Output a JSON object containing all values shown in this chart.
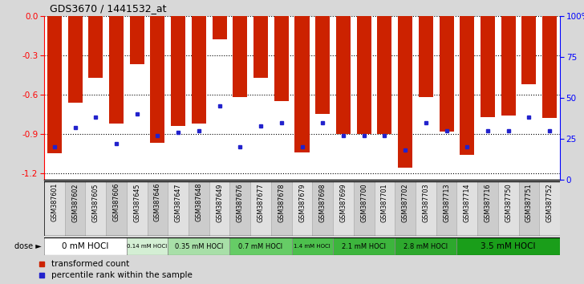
{
  "title": "GDS3670 / 1441532_at",
  "samples": [
    "GSM387601",
    "GSM387602",
    "GSM387605",
    "GSM387606",
    "GSM387645",
    "GSM387646",
    "GSM387647",
    "GSM387648",
    "GSM387649",
    "GSM387676",
    "GSM387677",
    "GSM387678",
    "GSM387679",
    "GSM387698",
    "GSM387699",
    "GSM387700",
    "GSM387701",
    "GSM387702",
    "GSM387703",
    "GSM387713",
    "GSM387714",
    "GSM387716",
    "GSM387750",
    "GSM387751",
    "GSM387752"
  ],
  "bar_values": [
    -1.05,
    -0.66,
    -0.47,
    -0.82,
    -0.37,
    -0.97,
    -0.84,
    -0.82,
    -0.18,
    -0.62,
    -0.47,
    -0.65,
    -1.04,
    -0.75,
    -0.9,
    -0.9,
    -0.9,
    -1.16,
    -0.62,
    -0.88,
    -1.06,
    -0.77,
    -0.76,
    -0.52,
    -0.78
  ],
  "percentile_values": [
    20,
    32,
    38,
    22,
    40,
    27,
    29,
    30,
    45,
    20,
    33,
    35,
    20,
    35,
    27,
    27,
    27,
    18,
    35,
    30,
    20,
    30,
    30,
    38,
    30
  ],
  "dose_groups": [
    {
      "label": "0 mM HOCl",
      "start": 0,
      "end": 4,
      "bg": "#ffffff"
    },
    {
      "label": "0.14 mM HOCl",
      "start": 4,
      "end": 6,
      "bg": "#d4efd4"
    },
    {
      "label": "0.35 mM HOCl",
      "start": 6,
      "end": 9,
      "bg": "#a8dfa8"
    },
    {
      "label": "0.7 mM HOCl",
      "start": 9,
      "end": 12,
      "bg": "#66cc66"
    },
    {
      "label": "1.4 mM HOCl",
      "start": 12,
      "end": 14,
      "bg": "#4dc04d"
    },
    {
      "label": "2.1 mM HOCl",
      "start": 14,
      "end": 17,
      "bg": "#3db53d"
    },
    {
      "label": "2.8 mM HOCl",
      "start": 17,
      "end": 20,
      "bg": "#2da82d"
    },
    {
      "label": "3.5 mM HOCl",
      "start": 20,
      "end": 25,
      "bg": "#1a9e1a"
    }
  ],
  "bar_color": "#cc2200",
  "dot_color": "#2222cc",
  "ylim_left": [
    -1.25,
    0.0
  ],
  "ylim_right": [
    0,
    100
  ],
  "yticks_left": [
    0.0,
    -0.3,
    -0.6,
    -0.9,
    -1.2
  ],
  "yticks_right": [
    0,
    25,
    50,
    75,
    100
  ],
  "background_color": "#d8d8d8",
  "plot_bg": "#ffffff"
}
